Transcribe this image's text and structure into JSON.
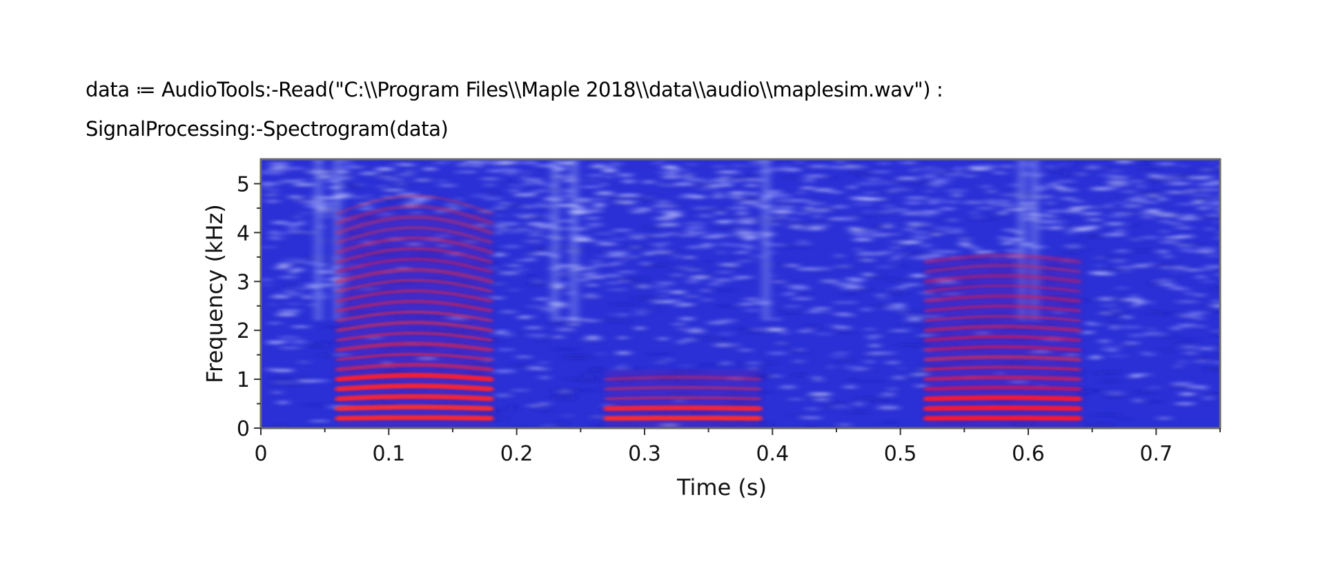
{
  "worksheet": {
    "input_line_1": "data ≔ AudioTools:-Read(\"C:\\\\Program Files\\\\Maple 2018\\\\data\\\\audio\\\\maplesim.wav\") :",
    "input_line_2": "SignalProcessing:-Spectrogram(data)"
  },
  "chart_data": {
    "type": "heatmap",
    "xlabel": "Time (s)",
    "ylabel": "Frequency (kHz)",
    "xlim": [
      0,
      0.75
    ],
    "ylim": [
      0,
      5.5
    ],
    "x_ticks": [
      "0",
      "0.1",
      "0.2",
      "0.3",
      "0.4",
      "0.5",
      "0.6",
      "0.7"
    ],
    "x_tick_values": [
      0,
      0.1,
      0.2,
      0.3,
      0.4,
      0.5,
      0.6,
      0.7
    ],
    "y_ticks": [
      "0",
      "1",
      "2",
      "3",
      "4",
      "5"
    ],
    "y_tick_values": [
      0,
      1,
      2,
      3,
      4,
      5
    ],
    "grid": false,
    "colors": {
      "low": "#2a2ad8",
      "high": "#ff1a2e",
      "quiet": "#d8e2ff"
    },
    "high_energy_regions": [
      {
        "t_start": 0.06,
        "t_end": 0.18,
        "f_start": 0.0,
        "f_end": 4.4,
        "strong_below_khz": 1.2
      },
      {
        "t_start": 0.27,
        "t_end": 0.39,
        "f_start": 0.0,
        "f_end": 1.2,
        "strong_below_khz": 0.6
      },
      {
        "t_start": 0.52,
        "t_end": 0.64,
        "f_start": 0.0,
        "f_end": 3.5,
        "strong_below_khz": 0.7
      }
    ],
    "harmonic_spacing_khz": 0.2
  }
}
